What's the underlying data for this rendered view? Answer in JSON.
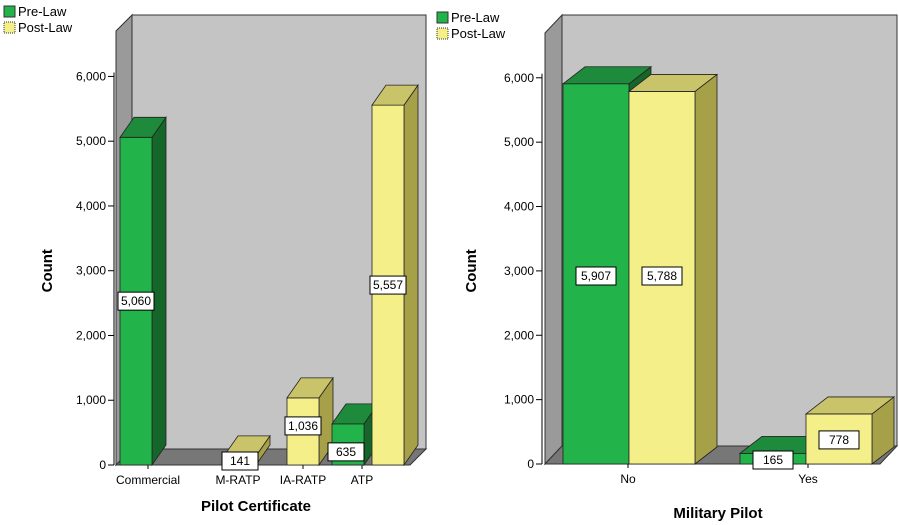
{
  "colors": {
    "pre_law": "#22b34a",
    "pre_law_top": "#1d8b3b",
    "pre_law_side": "#16652b",
    "post_law": "#f5ef8a",
    "post_law_top": "#c9c36a",
    "post_law_side": "#a6a049",
    "wall": "#c4c4c4",
    "wall_side": "#9a9a9a",
    "floor": "#777777"
  },
  "chart_data": [
    {
      "type": "bar",
      "title": "",
      "xlabel": "Pilot Certificate",
      "ylabel": "Count",
      "ylim": [
        0,
        6000
      ],
      "yticks": [
        0,
        1000,
        2000,
        3000,
        4000,
        5000,
        6000
      ],
      "ytick_labels": [
        "0",
        "1,000",
        "2,000",
        "3,000",
        "4,000",
        "5,000",
        "6,000"
      ],
      "layout": "3d-clustered",
      "legend": {
        "placement": "top-left",
        "entries": [
          "Pre-Law",
          "Post-Law"
        ]
      },
      "categories": [
        "Commercial",
        "M-RATP",
        "IA-RATP",
        "ATP"
      ],
      "series": [
        {
          "name": "Pre-Law",
          "values": [
            5060,
            0,
            0,
            635
          ],
          "labels": [
            "5,060",
            "",
            "",
            "635"
          ]
        },
        {
          "name": "Post-Law",
          "values": [
            0,
            141,
            1036,
            5557
          ],
          "labels": [
            "",
            "141",
            "1,036",
            "5,557"
          ]
        }
      ]
    },
    {
      "type": "bar",
      "title": "",
      "xlabel": "Military Pilot",
      "ylabel": "Count",
      "ylim": [
        0,
        6000
      ],
      "yticks": [
        0,
        1000,
        2000,
        3000,
        4000,
        5000,
        6000
      ],
      "ytick_labels": [
        "0",
        "1,000",
        "2,000",
        "3,000",
        "4,000",
        "5,000",
        "6,000"
      ],
      "layout": "3d-side-by-side",
      "legend": {
        "placement": "top-left",
        "entries": [
          "Pre-Law",
          "Post-Law"
        ]
      },
      "categories": [
        "No",
        "Yes"
      ],
      "series": [
        {
          "name": "Pre-Law",
          "values": [
            5907,
            165
          ],
          "labels": [
            "5,907",
            "165"
          ]
        },
        {
          "name": "Post-Law",
          "values": [
            5788,
            778
          ],
          "labels": [
            "5,788",
            "778"
          ]
        }
      ]
    }
  ]
}
